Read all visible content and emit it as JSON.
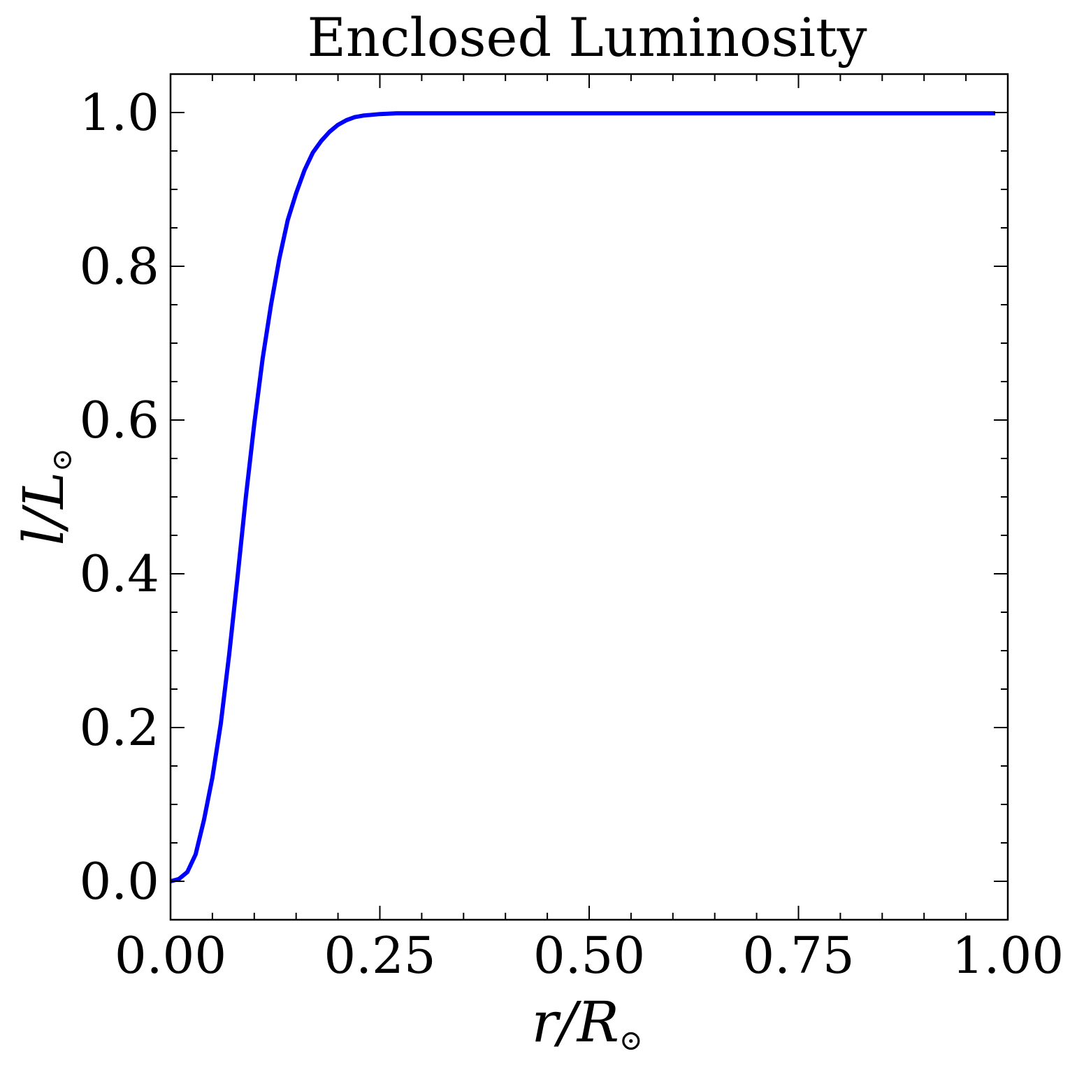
{
  "chart_data": {
    "type": "line",
    "title": "Enclosed Luminosity",
    "xlabel": {
      "main": "r/R",
      "sub": "⊙"
    },
    "ylabel": {
      "main": "l/L",
      "sub": "⊙"
    },
    "xlim": [
      0.0,
      1.0
    ],
    "ylim": [
      -0.05,
      1.05
    ],
    "xticks": [
      0.0,
      0.25,
      0.5,
      0.75,
      1.0
    ],
    "xtick_labels": [
      "0.00",
      "0.25",
      "0.50",
      "0.75",
      "1.00"
    ],
    "yticks": [
      0.0,
      0.2,
      0.4,
      0.6,
      0.8,
      1.0
    ],
    "ytick_labels": [
      "0.0",
      "0.2",
      "0.4",
      "0.6",
      "0.8",
      "1.0"
    ],
    "xminor_step": 0.05,
    "yminor_step": 0.05,
    "grid": false,
    "series": [
      {
        "color": "#0000ff",
        "x": [
          0.0,
          0.01,
          0.02,
          0.03,
          0.04,
          0.05,
          0.06,
          0.07,
          0.08,
          0.09,
          0.1,
          0.11,
          0.12,
          0.13,
          0.14,
          0.15,
          0.16,
          0.17,
          0.18,
          0.19,
          0.2,
          0.21,
          0.22,
          0.23,
          0.24,
          0.25,
          0.27,
          0.3,
          0.35,
          0.4,
          0.5,
          0.6,
          0.7,
          0.8,
          0.9,
          0.985
        ],
        "y": [
          0.0,
          0.003,
          0.012,
          0.035,
          0.08,
          0.135,
          0.205,
          0.295,
          0.395,
          0.5,
          0.595,
          0.68,
          0.75,
          0.81,
          0.86,
          0.895,
          0.925,
          0.948,
          0.963,
          0.975,
          0.984,
          0.99,
          0.994,
          0.996,
          0.997,
          0.998,
          0.999,
          0.999,
          0.999,
          0.999,
          0.999,
          0.999,
          0.999,
          0.999,
          0.999,
          0.999
        ]
      }
    ]
  }
}
